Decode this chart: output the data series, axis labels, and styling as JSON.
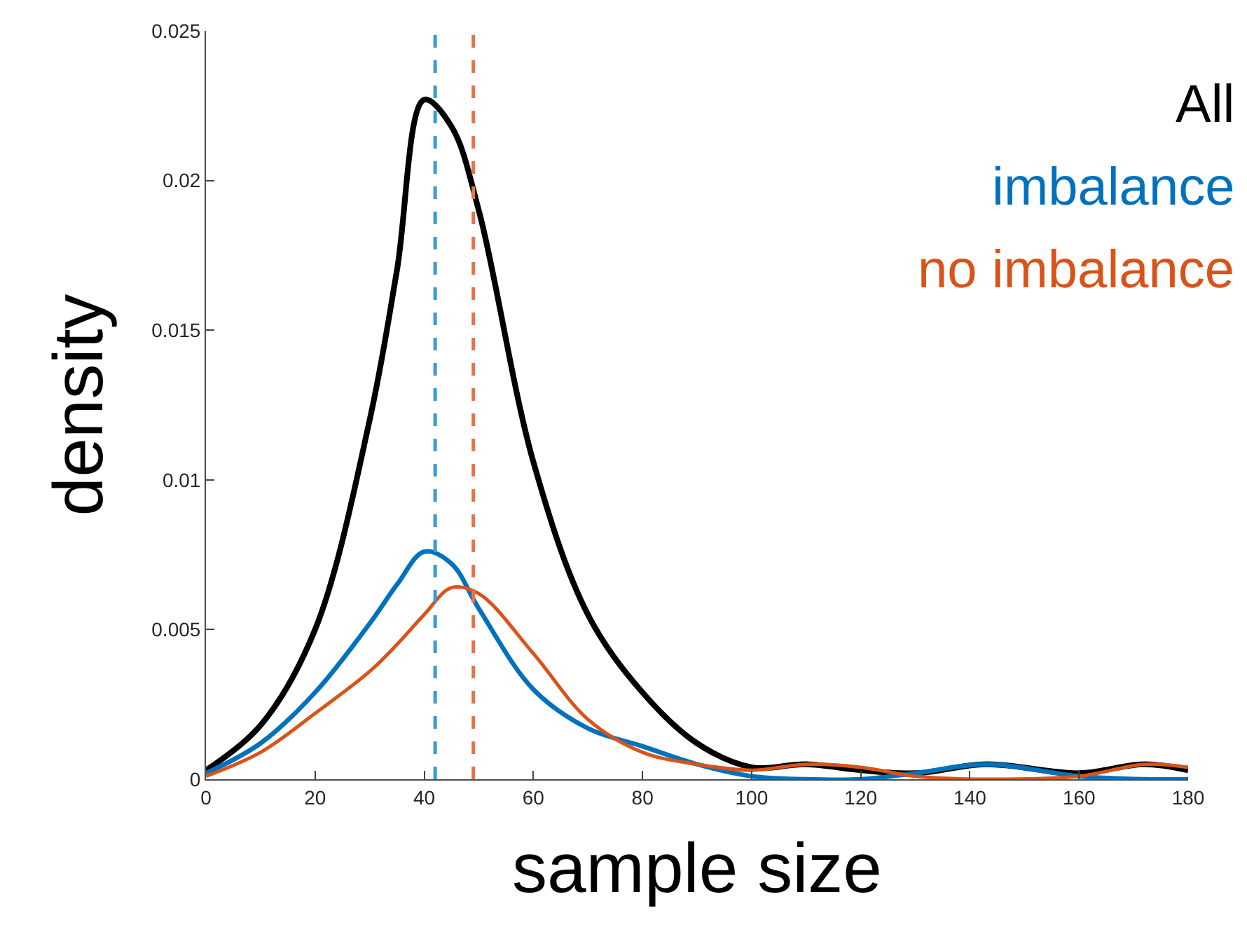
{
  "chart_data": {
    "type": "line",
    "xlabel": "sample size",
    "ylabel": "density",
    "xlim": [
      0,
      180
    ],
    "xticks": [
      0,
      20,
      40,
      60,
      80,
      100,
      120,
      140,
      160,
      180
    ],
    "ylim": [
      0,
      0.025
    ],
    "yticks": [
      0,
      0.005,
      0.01,
      0.015,
      0.02,
      0.025
    ],
    "grid": false,
    "marker": "none",
    "line_style": "solid",
    "x": [
      0,
      10,
      20,
      30,
      35,
      40,
      45,
      50,
      60,
      70,
      80,
      90,
      100,
      110,
      120,
      130,
      143,
      160,
      172,
      180
    ],
    "series": [
      {
        "name": "All",
        "color": "#000000",
        "values": [
          0.0003,
          0.0018,
          0.005,
          0.012,
          0.017,
          0.0227,
          0.0218,
          0.019,
          0.0106,
          0.0055,
          0.0029,
          0.0012,
          0.0004,
          0.0005,
          0.0003,
          0.0002,
          0.0005,
          0.0002,
          0.0005,
          0.0003
        ]
      },
      {
        "name": "imbalance",
        "color": "#0072bd",
        "values": [
          0.0002,
          0.0012,
          0.0029,
          0.0052,
          0.0065,
          0.0076,
          0.0072,
          0.0057,
          0.003,
          0.0017,
          0.0011,
          0.0005,
          0.0001,
          0.0,
          0.0,
          0.0002,
          0.0005,
          0.0001,
          0.0,
          0.0
        ]
      },
      {
        "name": "no imbalance",
        "color": "#d95319",
        "values": [
          0.0001,
          0.0009,
          0.0022,
          0.0036,
          0.0045,
          0.0055,
          0.0064,
          0.0062,
          0.0042,
          0.002,
          0.0009,
          0.0005,
          0.0003,
          0.0005,
          0.0004,
          0.0001,
          0.0,
          0.0001,
          0.0005,
          0.0004
        ]
      }
    ],
    "ref_lines": [
      {
        "axis": "x",
        "value": 42,
        "color": "#3a9ad9",
        "line_style": "dashed"
      },
      {
        "axis": "x",
        "value": 49,
        "color": "#e8734a",
        "line_style": "dashed"
      }
    ]
  }
}
